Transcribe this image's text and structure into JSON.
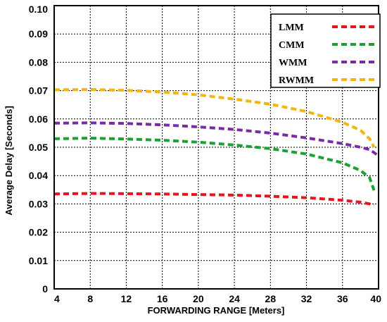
{
  "chart_data": {
    "type": "line",
    "xlabel": "FORWARDING RANGE [Meters]",
    "ylabel": "Average Delay [Seconds]",
    "x_ticks": [
      "4",
      "8",
      "12",
      "16",
      "20",
      "24",
      "28",
      "32",
      "36",
      "40"
    ],
    "y_ticks": [
      "0",
      "0.01",
      "0.02",
      "0.03",
      "0.04",
      "0.05",
      "0.06",
      "0.07",
      "0.08",
      "0.09",
      "0.10"
    ],
    "xlim": [
      4,
      40
    ],
    "ylim": [
      0,
      0.1
    ],
    "grid": true,
    "legend_position": "top-right",
    "series": [
      {
        "name": "LMM",
        "color": "#e8141b",
        "x": [
          4,
          8,
          12,
          16,
          20,
          24,
          28,
          32,
          36,
          38,
          39,
          39.5
        ],
        "y": [
          0.0335,
          0.0337,
          0.0336,
          0.0335,
          0.0333,
          0.0331,
          0.0327,
          0.0322,
          0.0313,
          0.0306,
          0.03,
          0.0296
        ]
      },
      {
        "name": "CMM",
        "color": "#1aa033",
        "x": [
          4,
          8,
          12,
          16,
          20,
          24,
          28,
          32,
          36,
          38,
          39,
          39.5
        ],
        "y": [
          0.053,
          0.0532,
          0.0529,
          0.0525,
          0.0518,
          0.0508,
          0.0495,
          0.0476,
          0.0445,
          0.0418,
          0.0393,
          0.0348
        ]
      },
      {
        "name": "WMM",
        "color": "#7a2aa6",
        "x": [
          4,
          8,
          12,
          16,
          20,
          24,
          28,
          32,
          36,
          38,
          39,
          40
        ],
        "y": [
          0.0585,
          0.0586,
          0.0584,
          0.0579,
          0.0572,
          0.0563,
          0.055,
          0.0533,
          0.0513,
          0.05,
          0.0492,
          0.047
        ]
      },
      {
        "name": "RWMM",
        "color": "#f4b414",
        "x": [
          4,
          8,
          12,
          16,
          20,
          24,
          28,
          32,
          36,
          38,
          39,
          39.5
        ],
        "y": [
          0.0703,
          0.0704,
          0.0701,
          0.0695,
          0.0685,
          0.067,
          0.0652,
          0.0626,
          0.0588,
          0.056,
          0.053,
          0.05
        ]
      }
    ]
  }
}
